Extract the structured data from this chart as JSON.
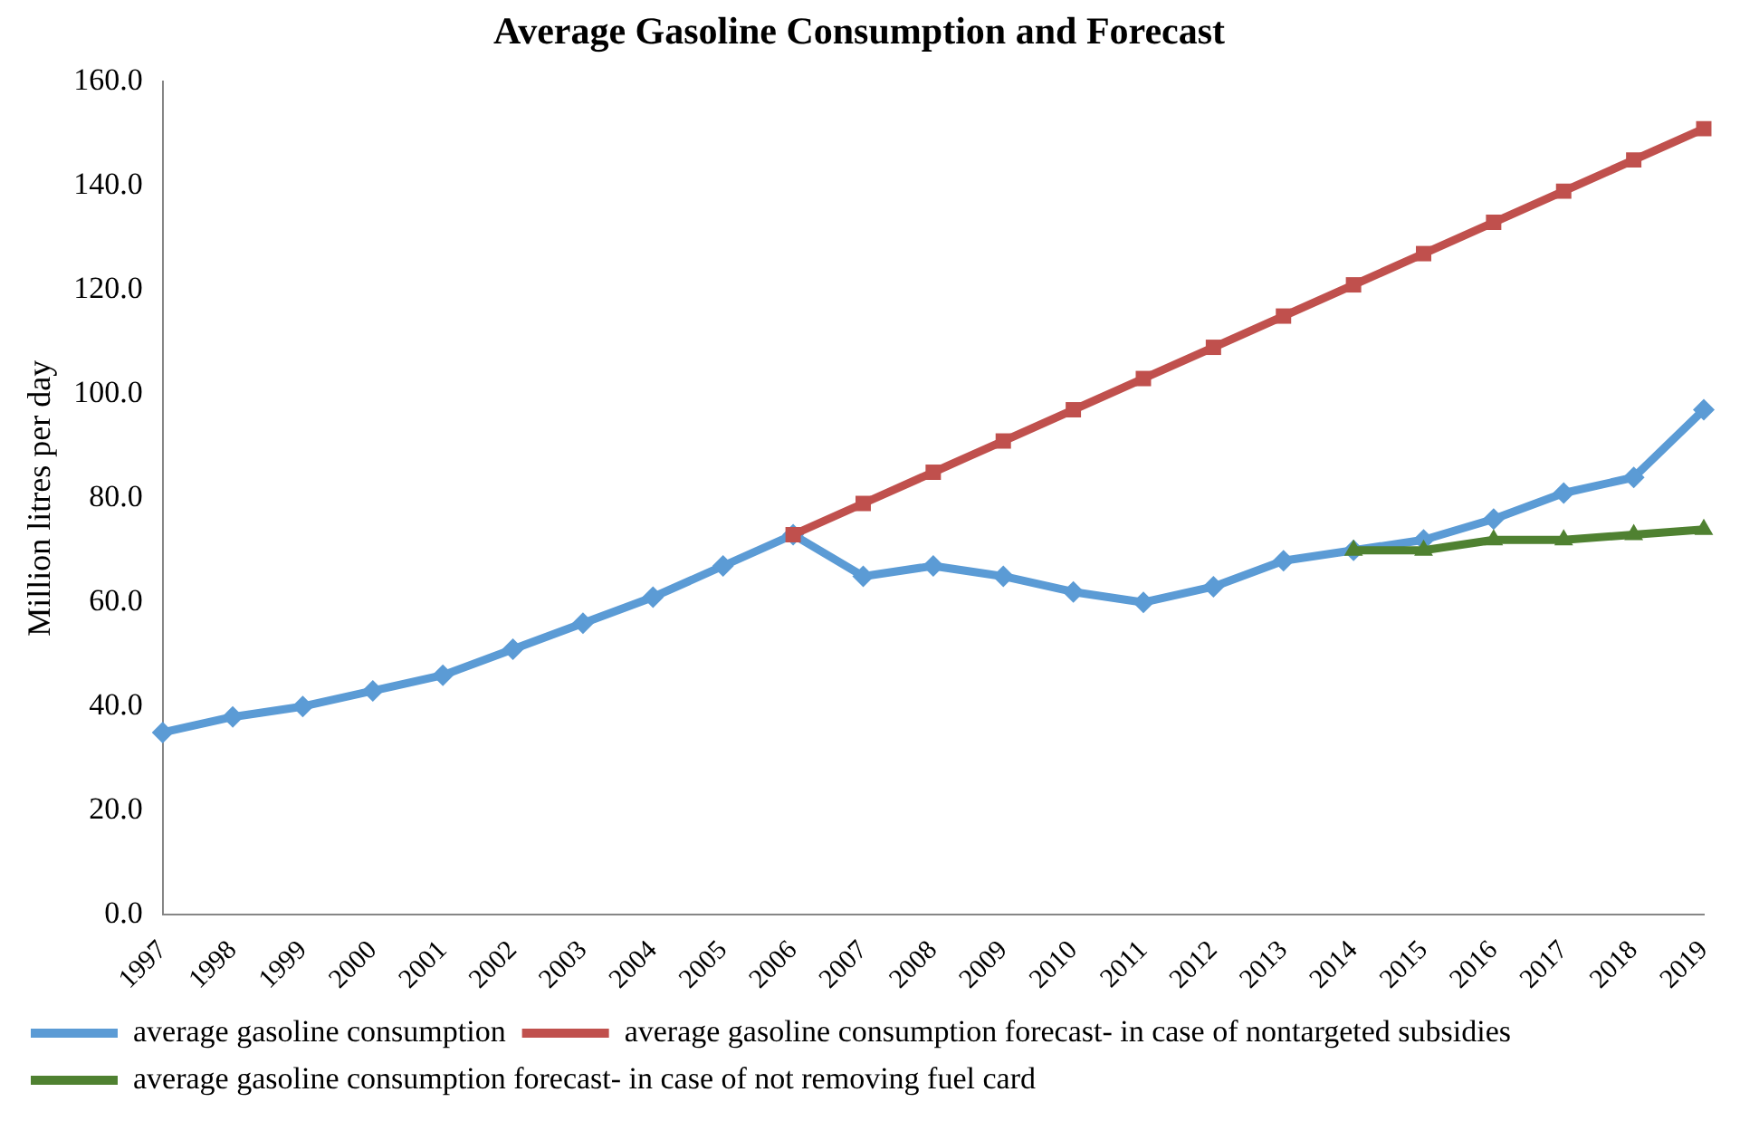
{
  "chart_data": {
    "type": "line",
    "title": "Average Gasoline Consumption and Forecast",
    "ylabel": "Million litres per day",
    "categories": [
      "1997",
      "1998",
      "1999",
      "2000",
      "2001",
      "2002",
      "2003",
      "2004",
      "2005",
      "2006",
      "2007",
      "2008",
      "2009",
      "2010",
      "2011",
      "2012",
      "2013",
      "2014",
      "2015",
      "2016",
      "2017",
      "2018",
      "2019"
    ],
    "series": [
      {
        "name": "average gasoline consumption",
        "color": "#5b9bd5",
        "marker": "diamond",
        "values": [
          35,
          38,
          40,
          43,
          46,
          51,
          56,
          61,
          67,
          73,
          65,
          67,
          65,
          62,
          60,
          63,
          68,
          70,
          72,
          76,
          81,
          84,
          97
        ]
      },
      {
        "name": "average gasoline consumption forecast- in case of nontargeted subsidies",
        "color": "#c0504d",
        "marker": "square",
        "values": [
          null,
          null,
          null,
          null,
          null,
          null,
          null,
          null,
          null,
          73,
          79,
          85,
          91,
          97,
          103,
          109,
          115,
          121,
          127,
          133,
          139,
          145,
          151
        ]
      },
      {
        "name": "average gasoline consumption forecast- in case of not removing fuel card",
        "color": "#4f8131",
        "marker": "triangle",
        "values": [
          null,
          null,
          null,
          null,
          null,
          null,
          null,
          null,
          null,
          null,
          null,
          null,
          null,
          null,
          null,
          null,
          null,
          70,
          70,
          72,
          72,
          73,
          74
        ]
      }
    ],
    "ylim": [
      0,
      160
    ],
    "yticks": [
      {
        "value": 0,
        "label": "0.0"
      },
      {
        "value": 20,
        "label": "20.0"
      },
      {
        "value": 40,
        "label": "40.0"
      },
      {
        "value": 60,
        "label": "60.0"
      },
      {
        "value": 80,
        "label": "80.0"
      },
      {
        "value": 100,
        "label": "100.0"
      },
      {
        "value": 120,
        "label": "120.0"
      },
      {
        "value": 140,
        "label": "140.0"
      },
      {
        "value": 160,
        "label": "160.0"
      }
    ],
    "grid": false,
    "legend": "bottom",
    "line_style": "solid"
  }
}
